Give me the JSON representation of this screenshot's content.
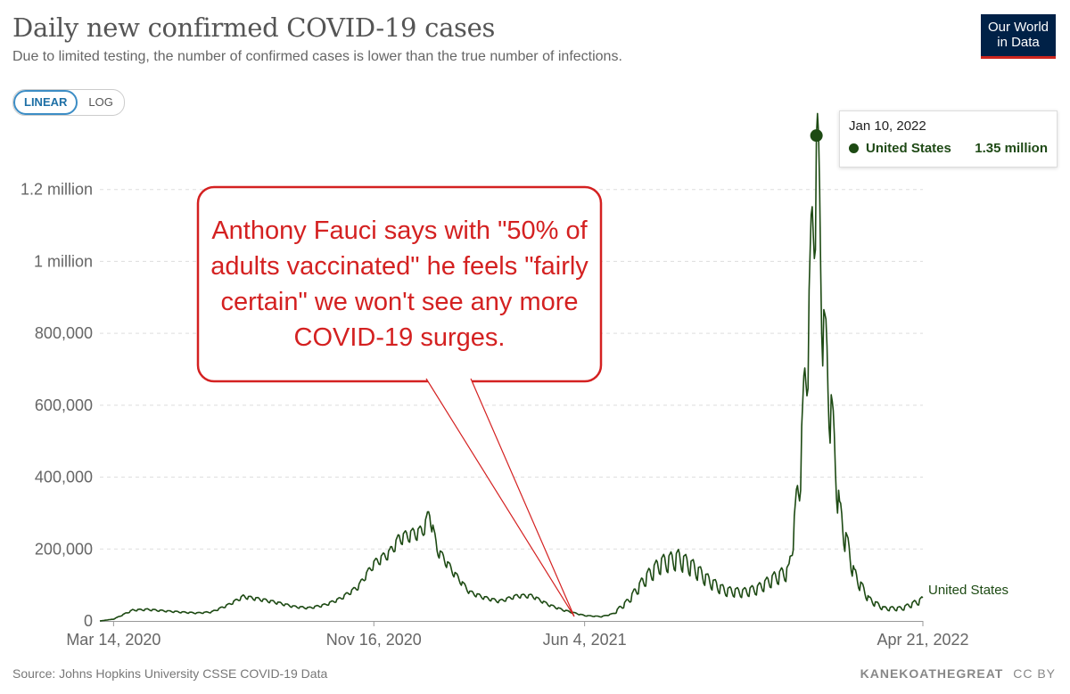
{
  "header": {
    "title": "Daily new confirmed COVID-19 cases",
    "subtitle": "Due to limited testing, the number of confirmed cases is lower than the true number of infections.",
    "logo_line1": "Our World",
    "logo_line2": "in Data"
  },
  "toggle": {
    "linear": "LINEAR",
    "log": "LOG",
    "active": "LINEAR"
  },
  "tooltip": {
    "date": "Jan 10, 2022",
    "series": "United States",
    "value": "1.35 million"
  },
  "annotation": "Anthony Fauci says with \"50% of adults vaccinated\" he feels \"fairly certain\" we won't see any more COVID-19 surges.",
  "footer": {
    "source": "Source: Johns Hopkins University CSSE COVID-19 Data",
    "handle": "KANEKOATHEGREAT",
    "license": "CC BY"
  },
  "colors": {
    "series": "#1d4a13",
    "annotation": "#d42121",
    "brand": "#002147"
  },
  "chart_data": {
    "type": "line",
    "ytick_labels": [
      "0",
      "200,000",
      "400,000",
      "600,000",
      "800,000",
      "1 million",
      "1.2 million"
    ],
    "yticks": [
      0,
      200000,
      400000,
      600000,
      800000,
      1000000,
      1200000
    ],
    "ylim": [
      0,
      1400000
    ],
    "xtick_labels": [
      "Mar 14, 2020",
      "Nov 16, 2020",
      "Jun 4, 2021",
      "Apr 21, 2022"
    ],
    "xticks": [
      "2020-03-14",
      "2020-11-16",
      "2021-06-04",
      "2022-04-21"
    ],
    "xlim": [
      "2020-03-01",
      "2022-04-21"
    ],
    "grid": "horizontal-dashed",
    "series": [
      {
        "name": "United States",
        "label_position": "end",
        "x": [
          "2020-03-01",
          "2020-03-14",
          "2020-04-01",
          "2020-04-15",
          "2020-05-01",
          "2020-05-15",
          "2020-06-01",
          "2020-06-15",
          "2020-07-01",
          "2020-07-15",
          "2020-08-01",
          "2020-08-15",
          "2020-09-01",
          "2020-09-15",
          "2020-10-01",
          "2020-10-15",
          "2020-11-01",
          "2020-11-16",
          "2020-12-01",
          "2020-12-10",
          "2020-12-20",
          "2021-01-01",
          "2021-01-08",
          "2021-01-15",
          "2021-02-01",
          "2021-02-15",
          "2021-03-01",
          "2021-03-15",
          "2021-04-01",
          "2021-04-15",
          "2021-05-01",
          "2021-05-15",
          "2021-06-04",
          "2021-06-20",
          "2021-07-01",
          "2021-07-15",
          "2021-08-01",
          "2021-08-15",
          "2021-09-01",
          "2021-09-15",
          "2021-10-01",
          "2021-10-15",
          "2021-11-01",
          "2021-11-15",
          "2021-12-01",
          "2021-12-15",
          "2021-12-25",
          "2022-01-03",
          "2022-01-10",
          "2022-01-17",
          "2022-01-25",
          "2022-02-01",
          "2022-02-15",
          "2022-03-01",
          "2022-03-15",
          "2022-04-01",
          "2022-04-21"
        ],
        "y": [
          0,
          5000,
          30000,
          32000,
          28000,
          25000,
          22000,
          25000,
          45000,
          68000,
          60000,
          52000,
          40000,
          36000,
          45000,
          62000,
          95000,
          160000,
          190000,
          230000,
          240000,
          250000,
          300000,
          200000,
          130000,
          80000,
          65000,
          55000,
          70000,
          70000,
          45000,
          30000,
          15000,
          12000,
          20000,
          55000,
          120000,
          160000,
          175000,
          150000,
          110000,
          85000,
          80000,
          90000,
          120000,
          140000,
          400000,
          850000,
          1350000,
          800000,
          550000,
          300000,
          130000,
          60000,
          35000,
          35000,
          60000
        ]
      }
    ],
    "highlight": {
      "x": "2022-01-10",
      "y": 1350000
    }
  }
}
